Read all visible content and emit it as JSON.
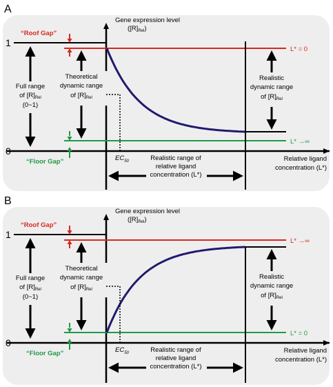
{
  "panels": [
    {
      "letter": "A",
      "y_axis_title": "Gene expression level",
      "y_axis_unit": "([R]",
      "y_axis_unit_sub": "Rel",
      "y_axis_unit_end": ")",
      "tick_top": "1",
      "tick_bottom": "0",
      "roof_gap": "“Roof Gap”",
      "floor_gap": "“Floor Gap”",
      "full_range": [
        "Full range",
        "of [R]",
        "Rel",
        "(0~1)"
      ],
      "theoretical": [
        "Theoretical",
        "dynamic range",
        "of [R]",
        "Rel"
      ],
      "realistic_dyn": [
        "Realistic",
        "dynamic range",
        "of [R]",
        "Rel"
      ],
      "top_line_label": "L* = 0",
      "bottom_line_label": "L* →∞",
      "ec50": "EC",
      "ec50_sub": "50",
      "x_range": [
        "Realistic range of",
        "relative ligand",
        "concentration (L*)"
      ],
      "x_axis_title": [
        "Relative ligand",
        "concentration (L*)"
      ]
    },
    {
      "letter": "B",
      "y_axis_title": "Gene expression level",
      "y_axis_unit": "([R]",
      "y_axis_unit_sub": "Rel",
      "y_axis_unit_end": ")",
      "tick_top": "1",
      "tick_bottom": "0",
      "roof_gap": "“Roof Gap”",
      "floor_gap": "“Floor Gap”",
      "full_range": [
        "Full range",
        "of [R]",
        "Rel",
        "(0~1)"
      ],
      "theoretical": [
        "Theoretical",
        "dynamic range",
        "of [R]",
        "Rel"
      ],
      "realistic_dyn": [
        "Realistic",
        "dynamic range",
        "of [R]",
        "Rel"
      ],
      "top_line_label": "L* →∞",
      "bottom_line_label": "L* = 0",
      "ec50": "EC",
      "ec50_sub": "50",
      "x_range": [
        "Realistic range of",
        "relative ligand",
        "concentration (L*)"
      ],
      "x_axis_title": [
        "Relative ligand",
        "concentration (L*)"
      ]
    }
  ],
  "colors": {
    "panel_bg": "#eeeeee",
    "roof": "#d7281f",
    "floor": "#1f9a45",
    "curve": "#1f1a6e",
    "axis": "#000000"
  }
}
